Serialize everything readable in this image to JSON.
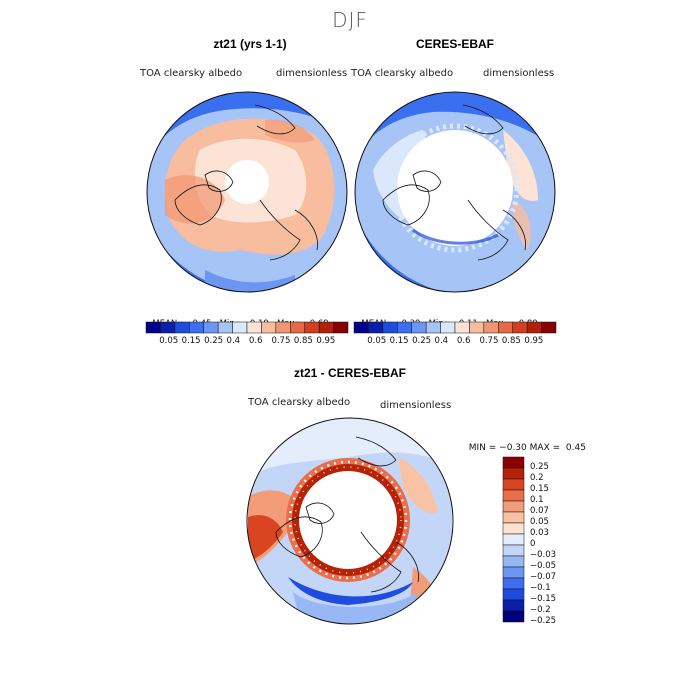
{
  "season": "DJF",
  "colors": {
    "seq": [
      "#00008b",
      "#0a1fa8",
      "#1e4be0",
      "#3a70f0",
      "#6b96f2",
      "#a6c4f5",
      "#dbe8fb",
      "#fde3d5",
      "#f8bd9e",
      "#f19672",
      "#e66a45",
      "#d2401f",
      "#b2200a",
      "#8a0000"
    ],
    "diff": [
      "#00007a",
      "#0a1fa8",
      "#1e4be0",
      "#3f6ff0",
      "#6b96f2",
      "#98b8f5",
      "#c3d6f8",
      "#e3edfb",
      "#fde2d2",
      "#f8c2a5",
      "#f39c78",
      "#ea6e4a",
      "#d84520",
      "#b52206",
      "#8a0000"
    ]
  },
  "panels": [
    {
      "title": "zt21 (yrs 1-1)",
      "field": "TOA clearsky albedo",
      "units": "dimensionless",
      "stats": {
        "mean_label": "MEAN=",
        "mean": "0.45",
        "min_label": "Min=",
        "min": "0.19",
        "max_label": "Max=",
        "max": "0.69"
      }
    },
    {
      "title": "CERES-EBAF",
      "field": "TOA clearsky albedo",
      "units": "dimensionless",
      "stats": {
        "mean_label": "MEAN=",
        "mean": "0.39",
        "min_label": "Min=",
        "min": "0.11",
        "max_label": "Max=",
        "max": "0.80"
      }
    }
  ],
  "seq_ticks": [
    "0.05",
    "0.15",
    "0.25",
    "0.4",
    "0.6",
    "0.75",
    "0.85",
    "0.95"
  ],
  "diff_panel": {
    "title": "zt21 - CERES-EBAF",
    "field": "TOA clearsky albedo",
    "units": "dimensionless",
    "min_label": "MIN =",
    "min": "−0.30",
    "max_label": "MAX =",
    "max": "0.45"
  },
  "diff_ticks": [
    "0.25",
    "0.2",
    "0.15",
    "0.1",
    "0.07",
    "0.05",
    "0.03",
    "0",
    "−0.03",
    "−0.05",
    "−0.07",
    "−0.1",
    "−0.15",
    "−0.2",
    "−0.25"
  ]
}
